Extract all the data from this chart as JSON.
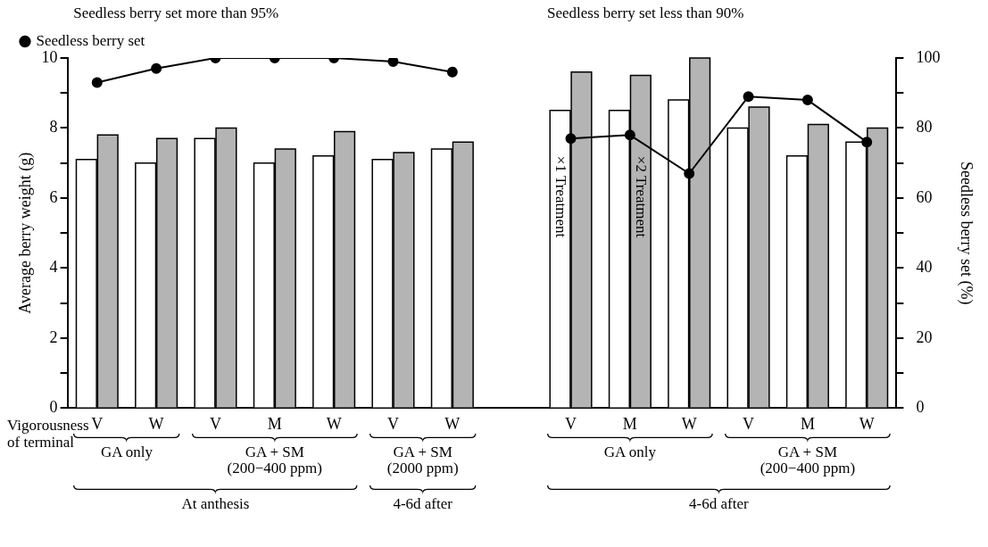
{
  "chart_data": {
    "type": "bar",
    "categories": [
      "V",
      "W",
      "V",
      "M",
      "W",
      "V",
      "W",
      null,
      "V",
      "M",
      "W",
      "V",
      "M",
      "W"
    ],
    "xlabel": "Vigorousness\nof terminal",
    "ylabel": "Average berry weight (g)",
    "y2label": "Seedless berry set (%)",
    "series": [
      {
        "name": "×1 Treatment",
        "color": "#ffffff",
        "values": [
          7.1,
          7.0,
          7.7,
          7.0,
          7.2,
          7.1,
          7.4,
          null,
          8.5,
          8.5,
          8.8,
          8.0,
          7.2,
          7.6
        ]
      },
      {
        "name": "×2 Treatment",
        "color": "#b4b4b4",
        "values": [
          7.8,
          7.7,
          8.0,
          7.4,
          7.9,
          7.3,
          7.6,
          null,
          9.6,
          9.5,
          10.0,
          8.6,
          8.1,
          8.0
        ]
      },
      {
        "name": "Seedless berry set",
        "type": "line",
        "axis": "y2",
        "color": "#000000",
        "marker": "circle",
        "values": [
          93,
          97,
          100,
          100,
          100,
          99,
          96,
          null,
          77,
          78,
          67,
          89,
          88,
          76
        ]
      }
    ],
    "ylim": [
      0,
      10
    ],
    "yticks": [
      0,
      {
        "value": 1,
        "label": null
      },
      2,
      {
        "value": 3,
        "label": null
      },
      4,
      {
        "value": 5,
        "label": null
      },
      6,
      {
        "value": 7,
        "label": null
      },
      8,
      {
        "value": 9,
        "label": null
      },
      10
    ],
    "y2lim": [
      0,
      100
    ],
    "y2ticks": [
      0,
      {
        "value": 10,
        "label": null
      },
      20,
      {
        "value": 30,
        "label": null
      },
      40,
      {
        "value": 50,
        "label": null
      },
      60,
      {
        "value": 70,
        "label": null
      },
      80,
      {
        "value": 90,
        "label": null
      },
      100
    ],
    "legend": "top left",
    "grid": false,
    "annotations": [
      "Seedless berry set more than 95%",
      "Seedless berry set less than 90%",
      "GA only",
      "GA + SM\n(200−400 ppm)",
      "GA + SM\n(2000 ppm)",
      "At anthesis",
      "4-6d after",
      "GA only",
      "GA + SM\n(200−400 ppm)",
      "4-6d after"
    ]
  }
}
